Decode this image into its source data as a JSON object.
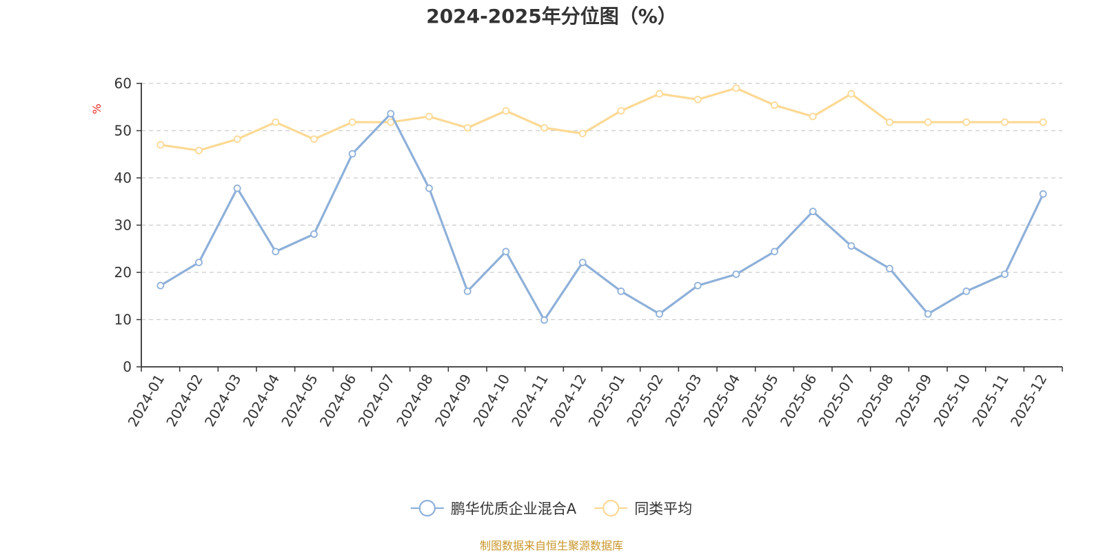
{
  "chart_data": {
    "type": "line",
    "title": "2024-2025年分位图（%）",
    "ylabel": "%",
    "xlabel": "",
    "ylim": [
      0,
      60
    ],
    "yticks": [
      0,
      10,
      20,
      30,
      40,
      50,
      60
    ],
    "grid": true,
    "legend_position": "bottom-center",
    "categories": [
      "2024-01",
      "2024-02",
      "2024-03",
      "2024-04",
      "2024-05",
      "2024-06",
      "2024-07",
      "2024-08",
      "2024-09",
      "2024-10",
      "2024-11",
      "2024-12",
      "2025-01",
      "2025-02",
      "2025-03",
      "2025-04",
      "2025-05",
      "2025-06",
      "2025-07",
      "2025-08",
      "2025-09",
      "2025-10",
      "2025-11",
      "2025-12"
    ],
    "series": [
      {
        "name": "鹏华优质企业混合A",
        "color": "#8eb0d9",
        "values": [
          17.2,
          22.1,
          37.8,
          24.4,
          28.1,
          45.1,
          53.6,
          37.8,
          16.0,
          24.4,
          9.9,
          22.1,
          16.0,
          11.2,
          17.2,
          19.6,
          24.4,
          32.9,
          25.6,
          20.8,
          11.2,
          16.0,
          19.6,
          36.6
        ]
      },
      {
        "name": "同类平均",
        "color": "#fcd994",
        "values": [
          47.0,
          45.8,
          48.2,
          51.8,
          48.2,
          51.8,
          51.8,
          53.0,
          50.6,
          54.2,
          50.6,
          49.4,
          54.2,
          57.8,
          56.6,
          59.0,
          55.4,
          53.0,
          57.8,
          51.8,
          51.8,
          51.8,
          51.8,
          51.8
        ]
      }
    ],
    "source": "制图数据来自恒生聚源数据库"
  }
}
